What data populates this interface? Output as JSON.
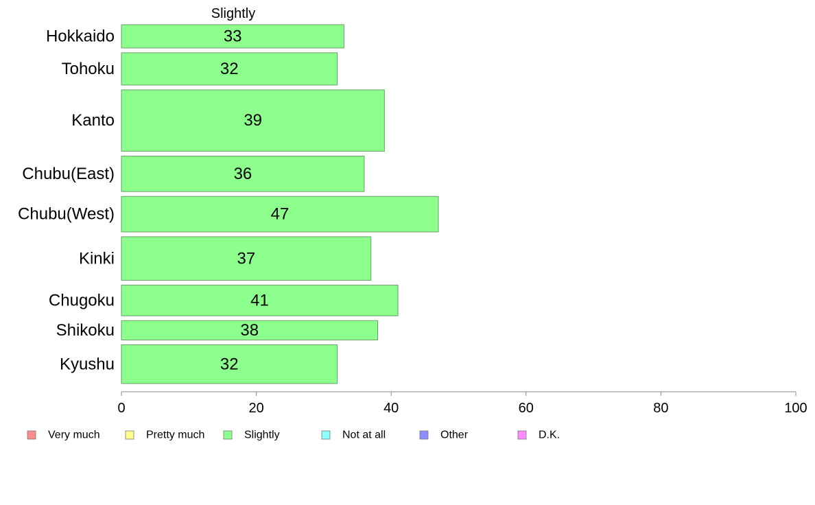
{
  "chart_data": {
    "type": "bar",
    "orientation": "horizontal",
    "series_title": "Slightly",
    "categories": [
      "Hokkaido",
      "Tohoku",
      "Kanto",
      "Chubu(East)",
      "Chubu(West)",
      "Kinki",
      "Chugoku",
      "Shikoku",
      "Kyushu"
    ],
    "series": [
      {
        "name": "Slightly",
        "color": "#8cff8c",
        "values": [
          33,
          32,
          39,
          36,
          47,
          37,
          41,
          38,
          32
        ],
        "labels": [
          "33",
          "32",
          "39",
          "36",
          "47",
          "37",
          "41",
          "38",
          "32"
        ]
      }
    ],
    "bar_weights": [
      0.72,
      1.0,
      1.9,
      1.1,
      1.1,
      1.35,
      0.95,
      0.6,
      1.2
    ],
    "xlim": [
      0,
      100
    ],
    "xticks": [
      "0",
      "20",
      "40",
      "60",
      "80",
      "100"
    ],
    "grid": false,
    "legend_position": "bottom",
    "legend": [
      {
        "label": "Very much",
        "color": "#ff8c8c"
      },
      {
        "label": "Pretty much",
        "color": "#ffff8c"
      },
      {
        "label": "Slightly",
        "color": "#8cff8c"
      },
      {
        "label": "Not at all",
        "color": "#8cffff"
      },
      {
        "label": "Other",
        "color": "#8c8cff"
      },
      {
        "label": "D.K.",
        "color": "#ff8cff"
      }
    ]
  }
}
